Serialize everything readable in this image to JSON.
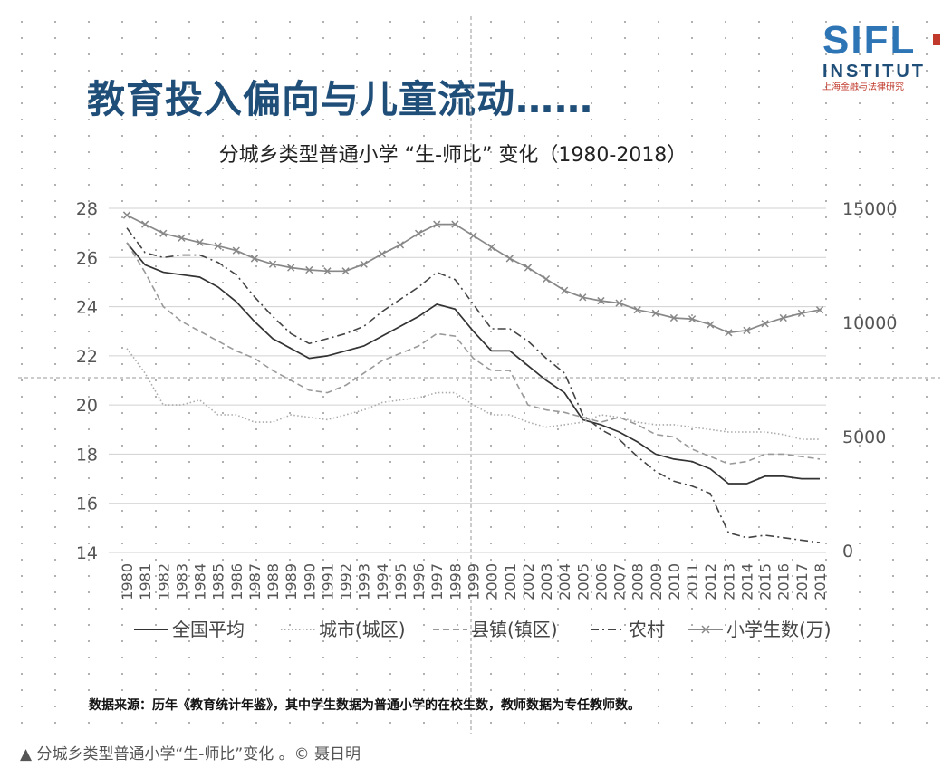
{
  "slide": {
    "headline": "教育投入偏向与儿童流动……",
    "logo": {
      "main": "SIFL",
      "sub": "INSTITUT",
      "cn": "上海金融与法律研究"
    },
    "source_note": "数据来源：历年《教育统计年鉴》，其中学生数据为普通小学的在校生数，教师数据为专任教师数。"
  },
  "caption": "▲ 分城乡类型普通小学“生-师比”变化 。© 聂日明",
  "colors": {
    "headline": "#1f4e79",
    "logo": "#2e75b6",
    "logo_accent": "#c0392b"
  },
  "chart_data": {
    "type": "line",
    "title": "分城乡类型普通小学 “生-师比” 变化（1980-2018）",
    "x": [
      "1980",
      "1981",
      "1982",
      "1983",
      "1984",
      "1985",
      "1986",
      "1987",
      "1988",
      "1989",
      "1990",
      "1991",
      "1992",
      "1993",
      "1994",
      "1995",
      "1996",
      "1997",
      "1998",
      "1999",
      "2000",
      "2001",
      "2002",
      "2003",
      "2004",
      "2005",
      "2006",
      "2007",
      "2008",
      "2009",
      "2010",
      "2011",
      "2012",
      "2013",
      "2014",
      "2015",
      "2016",
      "2017",
      "2018"
    ],
    "y_left": {
      "range": [
        14,
        28
      ],
      "ticks": [
        "14",
        "16",
        "18",
        "20",
        "22",
        "24",
        "26",
        "28"
      ]
    },
    "y_right": {
      "range": [
        0,
        15000
      ],
      "ticks": [
        "0",
        "5000",
        "10000",
        "15000"
      ]
    },
    "grid": true,
    "legend_position": "bottom",
    "series": [
      {
        "name": "全国平均",
        "axis": "left",
        "style": "solid",
        "color": "#333333",
        "values": [
          26.6,
          25.7,
          25.4,
          25.3,
          25.2,
          24.8,
          24.2,
          23.4,
          22.7,
          22.3,
          21.9,
          22.0,
          22.2,
          22.4,
          22.8,
          23.2,
          23.6,
          24.1,
          23.9,
          23.0,
          22.2,
          22.2,
          21.6,
          21.0,
          20.5,
          19.4,
          19.2,
          18.9,
          18.5,
          18.0,
          17.8,
          17.7,
          17.4,
          16.8,
          16.8,
          17.1,
          17.1,
          17.0,
          17.0
        ]
      },
      {
        "name": "城市(城区)",
        "axis": "left",
        "style": "dotted",
        "color": "#aaaaaa",
        "values": [
          22.3,
          21.3,
          20.0,
          20.0,
          20.2,
          19.6,
          19.6,
          19.3,
          19.3,
          19.6,
          19.5,
          19.4,
          19.6,
          19.8,
          20.1,
          20.2,
          20.3,
          20.5,
          20.5,
          20.0,
          19.6,
          19.6,
          19.3,
          19.1,
          19.2,
          19.3,
          19.6,
          19.5,
          19.3,
          19.2,
          19.2,
          19.1,
          19.0,
          18.9,
          18.9,
          18.9,
          18.8,
          18.6,
          18.6
        ]
      },
      {
        "name": "县镇(镇区)",
        "axis": "left",
        "style": "dashed",
        "color": "#999999",
        "values": [
          26.6,
          25.4,
          24.0,
          23.4,
          23.0,
          22.6,
          22.2,
          21.9,
          21.4,
          21.0,
          20.6,
          20.5,
          20.8,
          21.3,
          21.8,
          22.1,
          22.4,
          22.9,
          22.8,
          21.9,
          21.4,
          21.4,
          20.0,
          19.8,
          19.7,
          19.5,
          19.3,
          19.5,
          19.2,
          18.8,
          18.7,
          18.2,
          17.9,
          17.6,
          17.7,
          18.0,
          18.0,
          17.9,
          17.8
        ]
      },
      {
        "name": "农村",
        "axis": "left",
        "style": "dashdot",
        "color": "#444444",
        "values": [
          27.2,
          26.2,
          26.0,
          26.1,
          26.1,
          25.8,
          25.3,
          24.4,
          23.6,
          22.9,
          22.5,
          22.7,
          22.9,
          23.2,
          23.8,
          24.3,
          24.8,
          25.4,
          25.1,
          24.1,
          23.1,
          23.1,
          22.6,
          21.9,
          21.3,
          19.6,
          19.0,
          18.6,
          17.9,
          17.3,
          16.9,
          16.7,
          16.4,
          14.8,
          14.6,
          14.7,
          14.6,
          14.5,
          14.4
        ]
      },
      {
        "name": "小学生数(万)",
        "axis": "right",
        "style": "cross",
        "color": "#888888",
        "values": [
          14700,
          14300,
          13900,
          13700,
          13500,
          13350,
          13150,
          12800,
          12550,
          12400,
          12300,
          12250,
          12250,
          12550,
          13000,
          13400,
          13900,
          14300,
          14300,
          13800,
          13300,
          12800,
          12400,
          11900,
          11400,
          11100,
          10950,
          10850,
          10550,
          10400,
          10200,
          10150,
          9900,
          9550,
          9650,
          9950,
          10200,
          10400,
          10550
        ]
      }
    ],
    "annotations": [
      "数据来源：历年《教育统计年鉴》，其中学生数据为普通小学的在校生数，教师数据为专任教师数。"
    ]
  }
}
